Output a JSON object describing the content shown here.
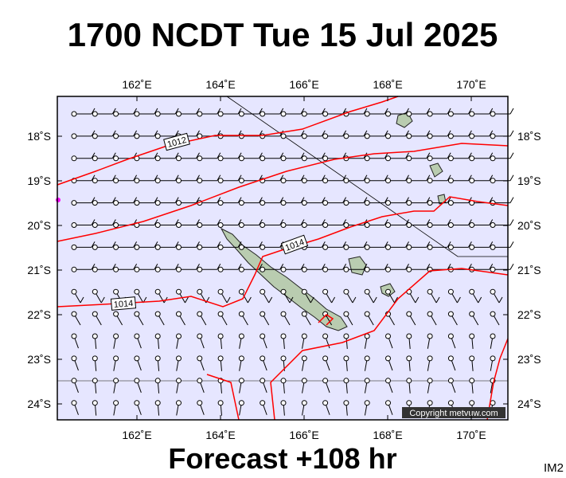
{
  "header": {
    "title": "1700 NCDT Tue 15 Jul 2025"
  },
  "map": {
    "lon_labels": [
      "162˚E",
      "164˚E",
      "166˚E",
      "168˚E",
      "170˚E"
    ],
    "lat_labels": [
      "18˚S",
      "19˚S",
      "20˚S",
      "21˚S",
      "22˚S",
      "23˚S",
      "24˚S"
    ],
    "isobar_labels": [
      "1012",
      "1014",
      "1014"
    ],
    "copyright": "Copyright metvuw.com"
  },
  "footer": {
    "forecast": "Forecast +108 hr",
    "code": "IM2"
  }
}
